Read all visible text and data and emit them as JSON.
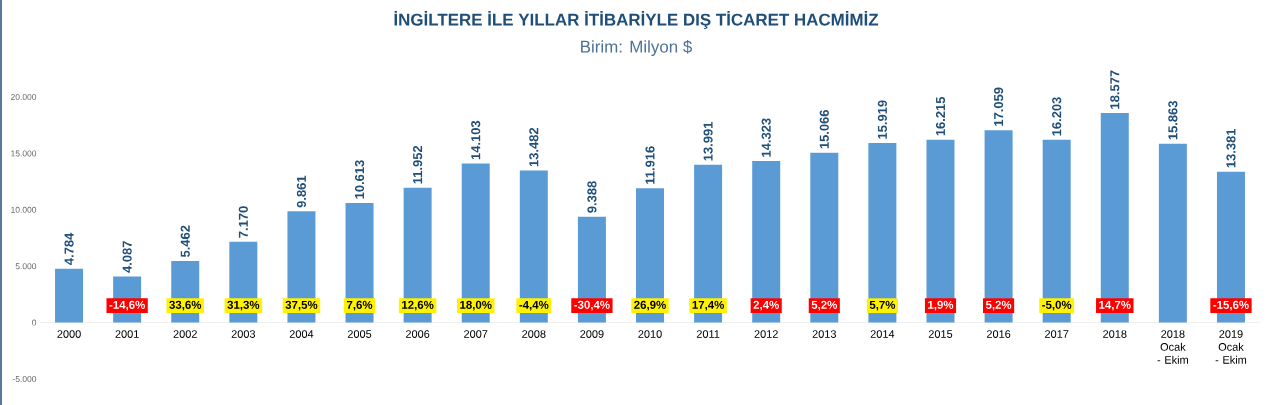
{
  "chart_data": {
    "type": "bar",
    "title": "İNGİLTERE İLE YILLAR İTİBARİYLE DIŞ TİCARET HACMİMİZ",
    "subtitle": "Birim: Milyon $",
    "categories": [
      "2000",
      "2001",
      "2002",
      "2003",
      "2004",
      "2005",
      "2006",
      "2007",
      "2008",
      "2009",
      "2010",
      "2011",
      "2012",
      "2013",
      "2014",
      "2015",
      "2016",
      "2017",
      "2018",
      "2018 Ocak - Ekim",
      "2019 Ocak - Ekim"
    ],
    "values": [
      4784,
      4087,
      5462,
      7170,
      9861,
      10613,
      11952,
      14103,
      13482,
      9388,
      11916,
      13991,
      14323,
      15066,
      15919,
      16215,
      17059,
      16203,
      18577,
      15863,
      13381
    ],
    "value_labels": [
      "4.784",
      "4.087",
      "5.462",
      "7.170",
      "9.861",
      "10.613",
      "11.952",
      "14.103",
      "13.482",
      "9.388",
      "11.916",
      "13.991",
      "14.323",
      "15.066",
      "15.919",
      "16.215",
      "17.059",
      "16.203",
      "18.577",
      "15.863",
      "13.381"
    ],
    "color": "#5b9bd5",
    "ylim": [
      -5000,
      20000
    ],
    "yticks": [
      {
        "value": -5000,
        "label": "-5.000"
      },
      0,
      {
        "value": 5000,
        "label": "5.000"
      },
      {
        "value": 10000,
        "label": "10.000"
      },
      {
        "value": 15000,
        "label": "15.000"
      },
      {
        "value": 20000,
        "label": "20.000"
      }
    ],
    "grid": false,
    "annotations": [
      {
        "text": "-14,6%",
        "x": "2001",
        "y": 1500
      },
      {
        "text": "33,6%",
        "x": "2002",
        "y": 1500
      },
      {
        "text": "31,3%",
        "x": "2003",
        "y": 1500
      },
      {
        "text": "37,5%",
        "x": "2004",
        "y": 1500
      },
      {
        "text": "7,6%",
        "x": "2005",
        "y": 1500
      },
      {
        "text": "12,6%",
        "x": "2006",
        "y": 1500
      },
      {
        "text": "18,0%",
        "x": "2007",
        "y": 1500
      },
      {
        "text": "-4,4%",
        "x": "2008",
        "y": 1500
      },
      {
        "text": "-30,4%",
        "x": "2009",
        "y": 1500
      },
      {
        "text": "26,9%",
        "x": "2010",
        "y": 1500
      },
      {
        "text": "17,4%",
        "x": "2011",
        "y": 1500
      },
      {
        "text": "2,4%",
        "x": "2012",
        "y": 1500
      },
      {
        "text": "5,2%",
        "x": "2013",
        "y": 1500
      },
      {
        "text": "5,7%",
        "x": "2014",
        "y": 1500
      },
      {
        "text": "1,9%",
        "x": "2015",
        "y": 1500
      },
      {
        "text": "5,2%",
        "x": "2016",
        "y": 1500
      },
      {
        "text": "-5,0%",
        "x": "2017",
        "y": 1500
      },
      {
        "text": "14,7%",
        "x": "2018",
        "y": 1500
      },
      {
        "text": "-15,6%",
        "x": "2019 Ocak - Ekim",
        "y": 1500
      }
    ]
  }
}
